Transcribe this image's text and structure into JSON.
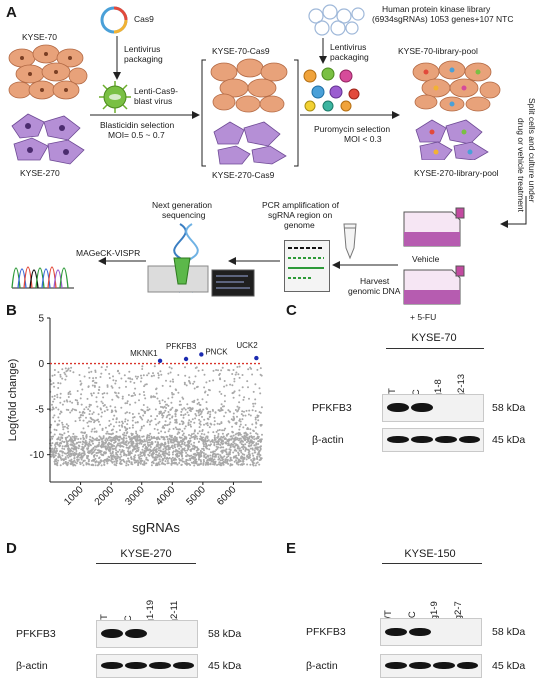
{
  "panel_A": {
    "letter": "A",
    "cas9": "Cas9",
    "kyse70": "KYSE-70",
    "kyse270": "KYSE-270",
    "lentivirus_packaging_1": "Lentivirus",
    "lentivirus_packaging_1b": "packaging",
    "lenti_virus_1": "Lenti-Cas9-",
    "lenti_virus_2": "blast virus",
    "blasticidin_1": "Blasticidin  selection",
    "blasticidin_2": "MOI= 0.5 ~ 0.7",
    "kyse70_cas9": "KYSE-70-Cas9",
    "kyse270_cas9": "KYSE-270-Cas9",
    "library_1": "Human protein kinase library",
    "library_2": "(6934sgRNAs) 1053 genes+107 NTC",
    "lentivirus_packaging_2": "Lentivirus",
    "lentivirus_packaging_2b": "packaging",
    "puromycin_1": "Puromycin  selection",
    "puromycin_2": "MOI < 0.3",
    "kyse70_pool": "KYSE-70-library-pool",
    "kyse270_pool": "KYSE-270-library-pool",
    "split_1": "Split cells and culture under",
    "split_2": "drug or vehicle treatment",
    "vehicle": "Vehicle",
    "fu": "+ 5-FU",
    "harvest_1": "Harvest",
    "harvest_2": "genomic DNA",
    "pcr_1": "PCR amplification of",
    "pcr_2": "sgRNA region on",
    "pcr_3": "genome",
    "ngs_1": "Next generation",
    "ngs_2": "sequencing",
    "mageck": "MAGeCK-VISPR"
  },
  "panel_B": {
    "letter": "B",
    "chart_data": {
      "type": "scatter",
      "xlabel": "sgRNAs",
      "ylabel": "Log(fold change)",
      "xlim": [
        0,
        6934
      ],
      "ylim": [
        -13,
        5
      ],
      "xticks": [
        1000,
        2000,
        3000,
        4000,
        5000,
        6000
      ],
      "yticks": [
        5,
        0,
        -5,
        -10
      ],
      "threshold_y": 0,
      "highlighted_genes": [
        {
          "name": "MKNK1",
          "x": 3600,
          "y": 0.3
        },
        {
          "name": "PFKFB3",
          "x": 4450,
          "y": 0.5
        },
        {
          "name": "PNCK",
          "x": 4950,
          "y": 1.0
        },
        {
          "name": "UCK2",
          "x": 6750,
          "y": 0.6
        }
      ],
      "point_color": "#a8a8a8",
      "highlight_color": "#1c2bb0",
      "threshold_color": "#d9342b"
    },
    "tick_labels_x": [
      "1000",
      "2000",
      "3000",
      "4000",
      "5000",
      "6000"
    ],
    "tick_labels_y": [
      "5",
      "0",
      "-5",
      "-10"
    ]
  },
  "panel_C": {
    "letter": "C",
    "cell_line": "KYSE-70",
    "lanes": [
      "WT",
      "NC",
      "sg1-8",
      "sg2-13"
    ],
    "row1": "PFKFB3",
    "row2": "β-actin",
    "kda1": "58 kDa",
    "kda2": "45 kDa"
  },
  "panel_D": {
    "letter": "D",
    "cell_line": "KYSE-270",
    "lanes": [
      "WT",
      "NC",
      "sg1-19",
      "sg2-11"
    ],
    "row1": "PFKFB3",
    "row2": "β-actin",
    "kda1": "58 kDa",
    "kda2": "45 kDa"
  },
  "panel_E": {
    "letter": "E",
    "cell_line": "KYSE-150",
    "lanes": [
      "WT",
      "NC",
      "sg1-9",
      "sg2-7"
    ],
    "row1": "PFKFB3",
    "row2": "β-actin",
    "kda1": "58 kDa",
    "kda2": "45 kDa"
  }
}
